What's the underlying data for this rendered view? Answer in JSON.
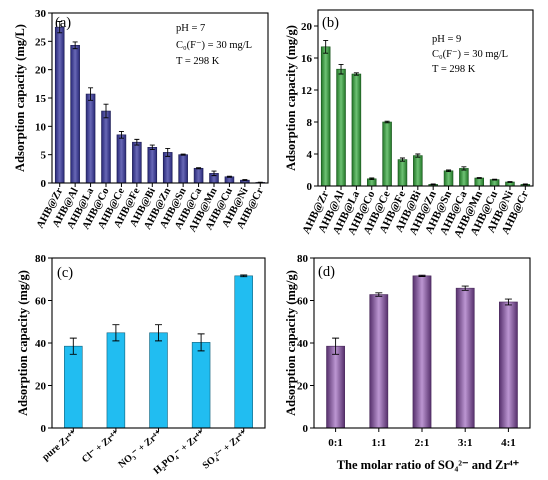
{
  "chart_data": [
    {
      "type": "bar",
      "panel_label": "(a)",
      "ylabel": "Adsorption capacity (mg/L)",
      "ylim": [
        0,
        30
      ],
      "yticks": [
        0,
        5,
        10,
        15,
        20,
        25,
        30
      ],
      "categories": [
        "AHB@Zr",
        "AHB@Al",
        "AHB@La",
        "AHB@Co",
        "AHB@Ce",
        "AHB@Fe",
        "AHB@Bi",
        "AHB@Zn",
        "AHB@Sn",
        "AHB@Ca",
        "AHB@Mn",
        "AHB@Cu",
        "AHB@Ni",
        "AHB@Cr"
      ],
      "values": [
        27.5,
        24.3,
        15.7,
        12.7,
        8.5,
        7.2,
        6.3,
        5.4,
        5.0,
        2.6,
        1.7,
        1.1,
        0.5,
        0.1
      ],
      "errors": [
        1.0,
        0.6,
        1.1,
        1.2,
        0.6,
        0.5,
        0.4,
        0.7,
        0.1,
        0.1,
        0.4,
        0.1,
        0.1,
        0.05
      ],
      "annotations": [
        "pH = 7",
        "C₀(F⁻) = 30 mg/L",
        "T = 298 K"
      ],
      "color": "#35359e"
    },
    {
      "type": "bar",
      "panel_label": "(b)",
      "ylabel": "Adsorption capacity (mg/g)",
      "ylim": [
        0,
        22
      ],
      "yticks": [
        0,
        4,
        8,
        12,
        16,
        20
      ],
      "categories": [
        "AHB@Zr",
        "AHB@Al",
        "AHB@La",
        "AHB@Co",
        "AHB@Ce",
        "AHB@Fe",
        "AHB@Bi",
        "AHB@Zn",
        "AHB@Sn",
        "AHB@Ca",
        "AHB@Mn",
        "AHB@Cu",
        "AHB@Ni",
        "AHB@Cr"
      ],
      "values": [
        17.4,
        14.6,
        14.0,
        0.9,
        8.0,
        3.3,
        3.8,
        0.2,
        1.9,
        2.2,
        1.0,
        0.8,
        0.5,
        0.2
      ],
      "errors": [
        0.8,
        0.6,
        0.15,
        0.1,
        0.1,
        0.2,
        0.2,
        0.05,
        0.1,
        0.2,
        0.05,
        0.05,
        0.05,
        0.05
      ],
      "annotations": [
        "pH = 9",
        "C₀(F⁻) = 30 mg/L",
        "T = 298 K"
      ],
      "color": "#30a838"
    },
    {
      "type": "bar",
      "panel_label": "(c)",
      "ylabel": "Adsorption capacity (mg/g)",
      "ylim": [
        0,
        80
      ],
      "yticks": [
        0,
        20,
        40,
        60,
        80
      ],
      "categories": [
        "pure Zr⁴⁺",
        "Cl⁻ + Zr⁴⁺",
        "NO₃⁻ + Zr⁴⁺",
        "H₂PO₄⁻ + Zr⁴⁺",
        "SO₄²⁻ + Zr⁴⁺"
      ],
      "values": [
        38.5,
        44.8,
        44.8,
        40.3,
        71.6
      ],
      "errors": [
        3.8,
        3.8,
        3.8,
        4.0,
        0.4
      ],
      "color": "#21bdf1"
    },
    {
      "type": "bar",
      "panel_label": "(d)",
      "ylabel": "Adsorption capacity (mg/g)",
      "xlabel": "The molar ratio of SO₄²⁻ and Zr⁴⁺",
      "ylim": [
        0,
        80
      ],
      "yticks": [
        0,
        20,
        40,
        60,
        80
      ],
      "categories": [
        "0:1",
        "1:1",
        "2:1",
        "3:1",
        "4:1"
      ],
      "values": [
        38.5,
        62.8,
        71.6,
        65.8,
        59.3
      ],
      "errors": [
        3.8,
        0.8,
        0.3,
        1.0,
        1.4
      ],
      "color": "#9050b4"
    }
  ]
}
